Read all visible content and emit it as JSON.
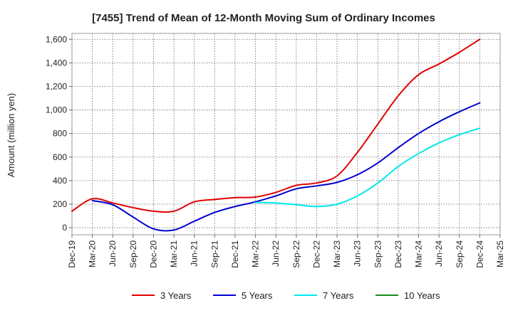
{
  "chart_data": {
    "type": "line",
    "title": "[7455]  Trend of Mean of 12-Month Moving Sum of Ordinary Incomes",
    "xlabel": "",
    "ylabel": "Amount (million yen)",
    "ylim": [
      -60,
      1650
    ],
    "yticks": [
      0,
      200,
      400,
      600,
      800,
      1000,
      1200,
      1400,
      1600
    ],
    "ytick_labels": [
      "0",
      "200",
      "400",
      "600",
      "800",
      "1,000",
      "1,200",
      "1,400",
      "1,600"
    ],
    "xticks": [
      "Dec-19",
      "Mar-20",
      "Jun-20",
      "Sep-20",
      "Dec-20",
      "Mar-21",
      "Jun-21",
      "Sep-21",
      "Dec-21",
      "Mar-22",
      "Jun-22",
      "Sep-22",
      "Dec-22",
      "Mar-23",
      "Jun-23",
      "Sep-23",
      "Dec-23",
      "Mar-24",
      "Jun-24",
      "Sep-24",
      "Dec-24",
      "Mar-25"
    ],
    "grid": true,
    "legend_position": "bottom",
    "series": [
      {
        "name": "3 Years",
        "color": "#e00000",
        "x": [
          0,
          1,
          2,
          3,
          4,
          5,
          6,
          7,
          8,
          9,
          10,
          11,
          12,
          13,
          14,
          15,
          16,
          17,
          18,
          19,
          20
        ],
        "values": [
          140,
          245,
          210,
          170,
          140,
          140,
          220,
          240,
          255,
          260,
          300,
          360,
          380,
          440,
          640,
          880,
          1120,
          1300,
          1390,
          1490,
          1600
        ]
      },
      {
        "name": "5 Years",
        "color": "#0000d0",
        "x": [
          1,
          2,
          3,
          4,
          5,
          6,
          7,
          8,
          9,
          10,
          11,
          12,
          13,
          14,
          15,
          16,
          17,
          18,
          19,
          20
        ],
        "values": [
          230,
          195,
          90,
          -10,
          -20,
          55,
          130,
          180,
          220,
          270,
          330,
          355,
          385,
          450,
          550,
          680,
          800,
          900,
          985,
          1060
        ]
      },
      {
        "name": "7 Years",
        "color": "#00e8e8",
        "x": [
          9,
          10,
          11,
          12,
          13,
          14,
          15,
          16,
          17,
          18,
          19,
          20
        ],
        "values": [
          215,
          210,
          195,
          180,
          200,
          270,
          380,
          520,
          630,
          720,
          790,
          845
        ]
      },
      {
        "name": "10 Years",
        "color": "#1a8a1a",
        "x": [],
        "values": []
      }
    ]
  }
}
